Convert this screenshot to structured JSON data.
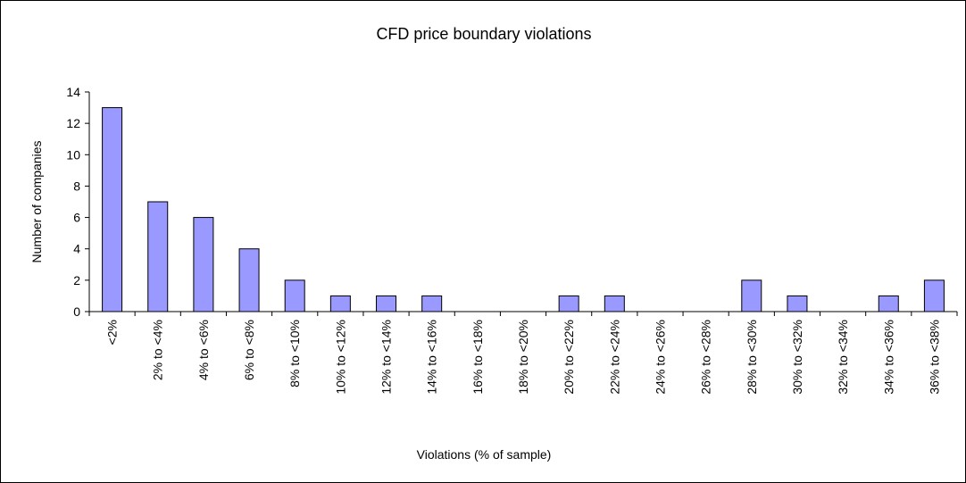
{
  "chart_data": {
    "type": "bar",
    "title": "CFD price boundary violations",
    "x_label": "Violations (% of sample)",
    "y_label": "Number of companies",
    "categories": [
      "<2%",
      "2% to <4%",
      "4% to <6%",
      "6% to <8%",
      "8% to <10%",
      "10% to <12%",
      "12% to <14%",
      "14% to <16%",
      "16% to <18%",
      "18% to <20%",
      "20% to <22%",
      "22% to <24%",
      "24% to <26%",
      "26% to <28%",
      "28% to <30%",
      "30% to <32%",
      "32% to <34%",
      "34% to <36%",
      "36% to <38%"
    ],
    "values": [
      13,
      7,
      6,
      4,
      2,
      1,
      1,
      1,
      0,
      0,
      1,
      1,
      0,
      0,
      2,
      1,
      0,
      1,
      2
    ],
    "color": "#9999ff",
    "ylim": [
      0,
      14
    ],
    "yticks": [
      0,
      2,
      4,
      6,
      8,
      10,
      12,
      14
    ],
    "grid": false
  }
}
